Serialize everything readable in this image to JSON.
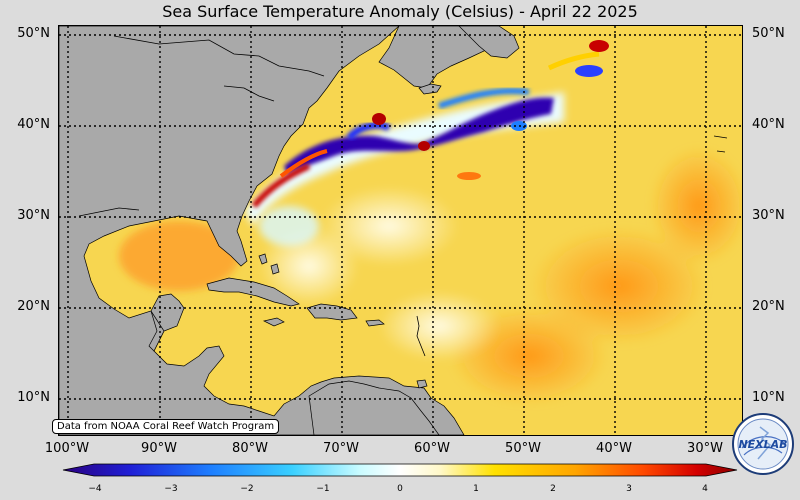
{
  "title": "Sea Surface Temperature Anomaly (Celsius) - April 22 2025",
  "lat_labels": [
    "50°N",
    "40°N",
    "30°N",
    "20°N",
    "10°N"
  ],
  "lon_labels": [
    "100°W",
    "90°W",
    "80°W",
    "70°W",
    "60°W",
    "50°W",
    "40°W",
    "30°W"
  ],
  "credit": "Data from NOAA Coral Reef Watch Program",
  "colorbar": {
    "ticks": [
      "−4",
      "−3",
      "−2",
      "−1",
      "0",
      "1",
      "2",
      "3",
      "4"
    ],
    "range": [
      -4,
      4
    ],
    "colors": [
      "#2a0080",
      "#1f1fd6",
      "#1e7fff",
      "#3ad0ff",
      "#c9fbff",
      "#ffffff",
      "#fff8c8",
      "#ffe100",
      "#ffa500",
      "#ff4a00",
      "#d40000",
      "#8a0000"
    ]
  },
  "logo_text": "NEXLAB",
  "colors": {
    "land": "#a9a9a9",
    "ocean_warm": "#f6d24a",
    "ocean_cold": "#3a10b8"
  }
}
